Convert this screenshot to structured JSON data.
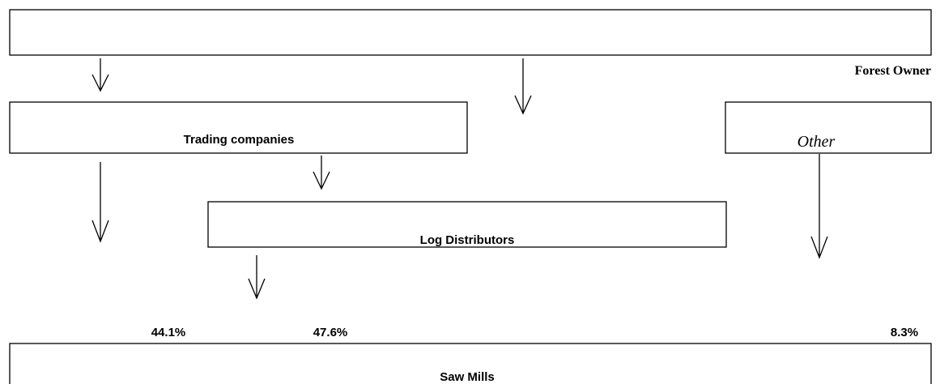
{
  "nodes": [
    {
      "label": "Forest Owner"
    },
    {
      "label": "Trading companies"
    },
    {
      "label": "Other"
    },
    {
      "label": "Log Distributors"
    },
    {
      "label": "Saw Mills"
    }
  ],
  "shares": [
    "44.1%",
    "47.6%",
    "8.3%"
  ]
}
